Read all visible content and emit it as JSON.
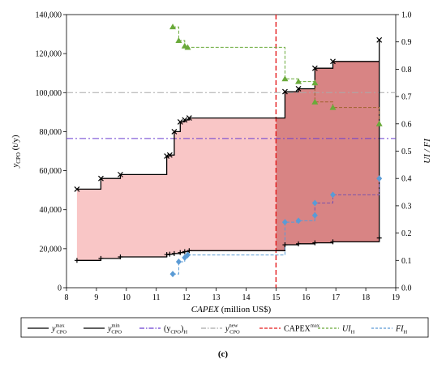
{
  "chart_data": {
    "type": "line",
    "x_axis": {
      "label_italic": "CAPEX",
      "label_rest": " (million US$)",
      "range": [
        8,
        19
      ],
      "ticks": [
        8,
        9,
        10,
        11,
        12,
        13,
        14,
        15,
        16,
        17,
        18,
        19
      ]
    },
    "y_axis_left": {
      "label_base": "y",
      "label_sub": "CPO",
      "label_unit": " (t/y)",
      "range": [
        0,
        140000
      ],
      "ticks": [
        "0",
        "20,000",
        "40,000",
        "60,000",
        "80,000",
        "100,000",
        "120,000",
        "140,000"
      ],
      "tick_values": [
        0,
        20000,
        40000,
        60000,
        80000,
        100000,
        120000,
        140000
      ]
    },
    "y_axis_right": {
      "label": "UI / FI",
      "range": [
        0,
        1
      ],
      "ticks": [
        "0.0",
        "0.1",
        "0.2",
        "0.3",
        "0.4",
        "0.5",
        "0.6",
        "0.7",
        "0.8",
        "0.9",
        "1.0"
      ],
      "tick_values": [
        0,
        0.1,
        0.2,
        0.3,
        0.4,
        0.5,
        0.6,
        0.7,
        0.8,
        0.9,
        1.0
      ]
    },
    "reference_lines": {
      "ycpo_H": 76500,
      "ycpo_new": 100000,
      "capex_max": 15.0
    },
    "series": [
      {
        "key": "ymax",
        "color": "#000000",
        "marker": "x",
        "points": [
          [
            8.35,
            50500
          ],
          [
            9.15,
            56000
          ],
          [
            9.8,
            58000
          ],
          [
            11.35,
            67500
          ],
          [
            11.45,
            68000
          ],
          [
            11.6,
            80000
          ],
          [
            11.8,
            85000
          ],
          [
            11.95,
            86000
          ],
          [
            12.1,
            87000
          ],
          [
            15.3,
            100500
          ],
          [
            15.75,
            102000
          ],
          [
            16.3,
            112500
          ],
          [
            16.9,
            116000
          ],
          [
            18.45,
            127000
          ]
        ]
      },
      {
        "key": "ymin",
        "color": "#000000",
        "marker": "plus",
        "points": [
          [
            8.35,
            14000
          ],
          [
            9.15,
            15000
          ],
          [
            9.8,
            15800
          ],
          [
            11.35,
            17000
          ],
          [
            11.45,
            17200
          ],
          [
            11.6,
            17500
          ],
          [
            11.8,
            18000
          ],
          [
            11.95,
            18500
          ],
          [
            12.1,
            19000
          ],
          [
            15.3,
            22000
          ],
          [
            15.75,
            22500
          ],
          [
            16.3,
            23000
          ],
          [
            16.9,
            23500
          ],
          [
            18.45,
            25500
          ]
        ]
      },
      {
        "key": "UI",
        "color": "#6aaa3a",
        "marker": "triangle",
        "points": [
          [
            11.55,
            0.955
          ],
          [
            11.75,
            0.905
          ],
          [
            11.95,
            0.885
          ],
          [
            12.05,
            0.88
          ],
          [
            15.3,
            0.765
          ],
          [
            15.75,
            0.755
          ],
          [
            16.3,
            0.75
          ],
          [
            16.3,
            0.68
          ],
          [
            16.9,
            0.66
          ],
          [
            18.45,
            0.6
          ]
        ]
      },
      {
        "key": "FI",
        "color": "#5b9bd5",
        "marker": "diamond",
        "points": [
          [
            11.55,
            0.05
          ],
          [
            11.75,
            0.095
          ],
          [
            11.95,
            0.11
          ],
          [
            12.05,
            0.12
          ],
          [
            15.3,
            0.24
          ],
          [
            15.75,
            0.245
          ],
          [
            16.3,
            0.265
          ],
          [
            16.3,
            0.31
          ],
          [
            16.9,
            0.34
          ],
          [
            18.45,
            0.4
          ]
        ]
      }
    ],
    "legend": [
      {
        "key": "ymax",
        "base": "y",
        "sup": "max",
        "sub": "CPO",
        "style": "black-x"
      },
      {
        "key": "ymin",
        "base": "y",
        "sup": "min",
        "sub": "CPO",
        "style": "black-plus"
      },
      {
        "key": "ycpoH",
        "text": "(y",
        "sub": "CPO",
        "close": ")",
        "tail": "H",
        "style": "purple-dashdot"
      },
      {
        "key": "ycponew",
        "base": "y",
        "sup": "new",
        "sub": "CPO",
        "style": "gray-dashdot"
      },
      {
        "key": "capexmax",
        "text": "CAPEX",
        "sup": "max",
        "style": "red-dash"
      },
      {
        "key": "UI",
        "text": "UI",
        "sub": "H",
        "style": "green-triangle"
      },
      {
        "key": "FI",
        "text": "FI",
        "sub": "H",
        "style": "blue-diamond"
      }
    ],
    "panel_label": "(c)",
    "colors": {
      "region_left": "#f9c6c6",
      "region_right": "#d88484",
      "ycpo_H": "#6a3fd1",
      "ycpo_new": "#a9a9a9",
      "capex_max": "#e41a1c",
      "UI": "#6aaa3a",
      "UI_dark": "#a0622d",
      "FI": "#5b9bd5",
      "FI_dark": "#7b52ab"
    }
  }
}
